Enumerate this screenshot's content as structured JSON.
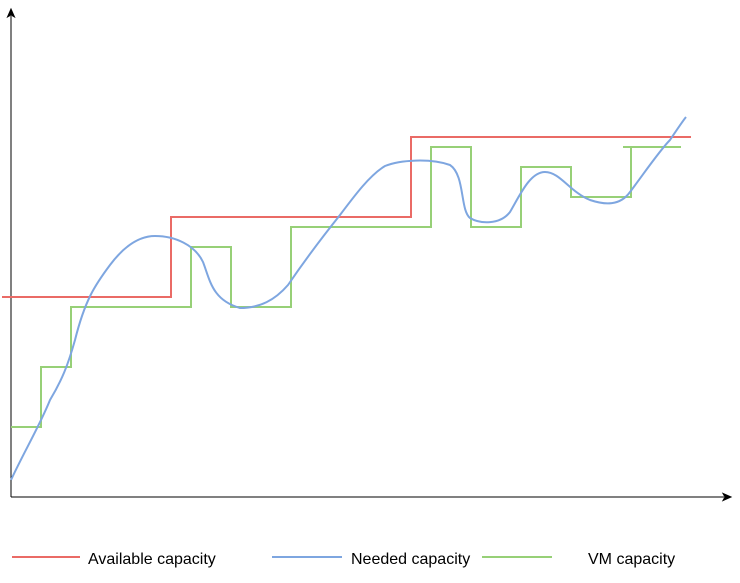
{
  "legend": {
    "items": [
      {
        "label": "Available capacity"
      },
      {
        "label": "Needed capacity"
      },
      {
        "label": "VM capacity"
      }
    ]
  }
}
